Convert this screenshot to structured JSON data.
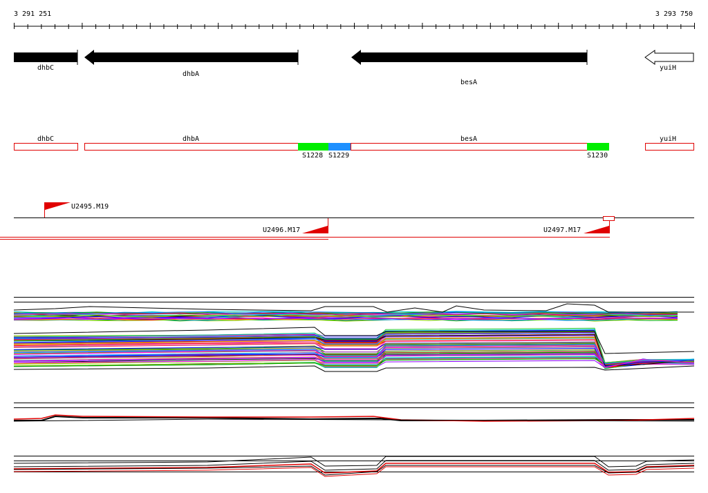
{
  "ruler": {
    "start_label": "3 291 251",
    "end_label": "3 293 750",
    "start": 3291251,
    "end": 3293750
  },
  "genes": [
    {
      "name": "dhbC",
      "strand": "-",
      "style": "filled"
    },
    {
      "name": "dhbA",
      "strand": "-",
      "style": "filled"
    },
    {
      "name": "besA",
      "strand": "-",
      "style": "filled"
    },
    {
      "name": "yuiH",
      "strand": "-",
      "style": "open"
    }
  ],
  "segment_track": {
    "genes": [
      "dhbC",
      "dhbA",
      "besA",
      "yuiH"
    ],
    "segments": [
      {
        "name": "S1228",
        "color": "#00ee00"
      },
      {
        "name": "S1229",
        "color": "#1e90ff"
      },
      {
        "name": "S1230",
        "color": "#00ee00"
      }
    ]
  },
  "transcripts": [
    {
      "name": "U2495.M19",
      "strand": "+"
    },
    {
      "name": "U2496.M17",
      "strand": "-"
    },
    {
      "name": "U2497.M17",
      "strand": "-"
    }
  ],
  "colors": {
    "gene_fill": "#000000",
    "gene_box": "#e00000",
    "transcript": "#e00000",
    "profile_highlight": "#e00000"
  },
  "profile_tracks": [
    {
      "kind": "multi-condition",
      "line_count": 120
    },
    {
      "kind": "pair",
      "line_count": 3
    },
    {
      "kind": "small-set",
      "line_count": 6
    }
  ]
}
